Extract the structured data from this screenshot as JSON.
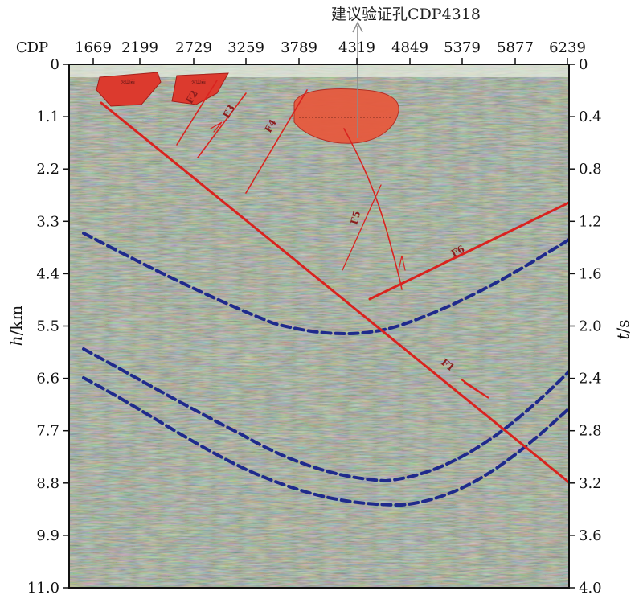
{
  "figure": {
    "top_axis": {
      "label": "CDP",
      "ticks": [
        "1669",
        "2199",
        "2729",
        "3259",
        "3789",
        "4319",
        "4849",
        "5379",
        "5877",
        "6239"
      ]
    },
    "left_axis": {
      "label_italic": "h",
      "label_rest": "/km",
      "ticks": [
        "0",
        "1.1",
        "2.2",
        "3.3",
        "4.4",
        "5.5",
        "6.6",
        "7.7",
        "8.8",
        "9.9",
        "11.0"
      ]
    },
    "right_axis": {
      "label_italic": "t",
      "label_rest": "/s",
      "ticks": [
        "0",
        "0.4",
        "0.8",
        "1.2",
        "1.6",
        "2.0",
        "2.4",
        "2.8",
        "3.2",
        "3.6",
        "4.0"
      ]
    },
    "borehole": {
      "label": "建议验证孔CDP4318",
      "cdp": 4318
    },
    "faults": [
      "F1",
      "F2",
      "F3",
      "F4",
      "F5",
      "F6"
    ],
    "colors": {
      "background": "#c9d6b4",
      "fault": "#d9231f",
      "horizon": "#1f2a8c",
      "anomaly": "#e0382c",
      "axis": "#111111"
    }
  }
}
